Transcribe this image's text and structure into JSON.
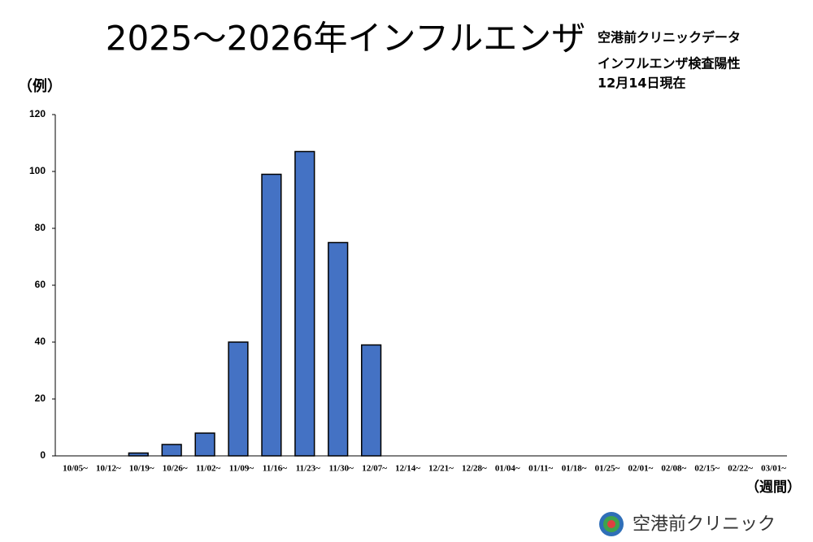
{
  "chart_data": {
    "type": "bar",
    "title": "2025～2026年インフルエンザ",
    "subtitle": [
      "空港前クリニックデータ",
      "インフルエンザ検査陽性",
      "12月14日現在"
    ],
    "y_label": "（例）",
    "x_label": "（週間）",
    "footer": "空港前クリニック",
    "categories": [
      "10/05~",
      "10/12~",
      "10/19~",
      "10/26~",
      "11/02~",
      "11/09~",
      "11/16~",
      "11/23~",
      "11/30~",
      "12/07~",
      "12/14~",
      "12/21~",
      "12/28~",
      "01/04~",
      "01/11~",
      "01/18~",
      "01/25~",
      "02/01~",
      "02/08~",
      "02/15~",
      "02/22~",
      "03/01~"
    ],
    "values": [
      0,
      0,
      1,
      4,
      8,
      40,
      99,
      107,
      75,
      39,
      null,
      null,
      null,
      null,
      null,
      null,
      null,
      null,
      null,
      null,
      null,
      null
    ],
    "color": "#4472c4",
    "ylim": [
      0,
      120
    ],
    "yticks": [
      0,
      20,
      40,
      60,
      80,
      100,
      120
    ]
  }
}
